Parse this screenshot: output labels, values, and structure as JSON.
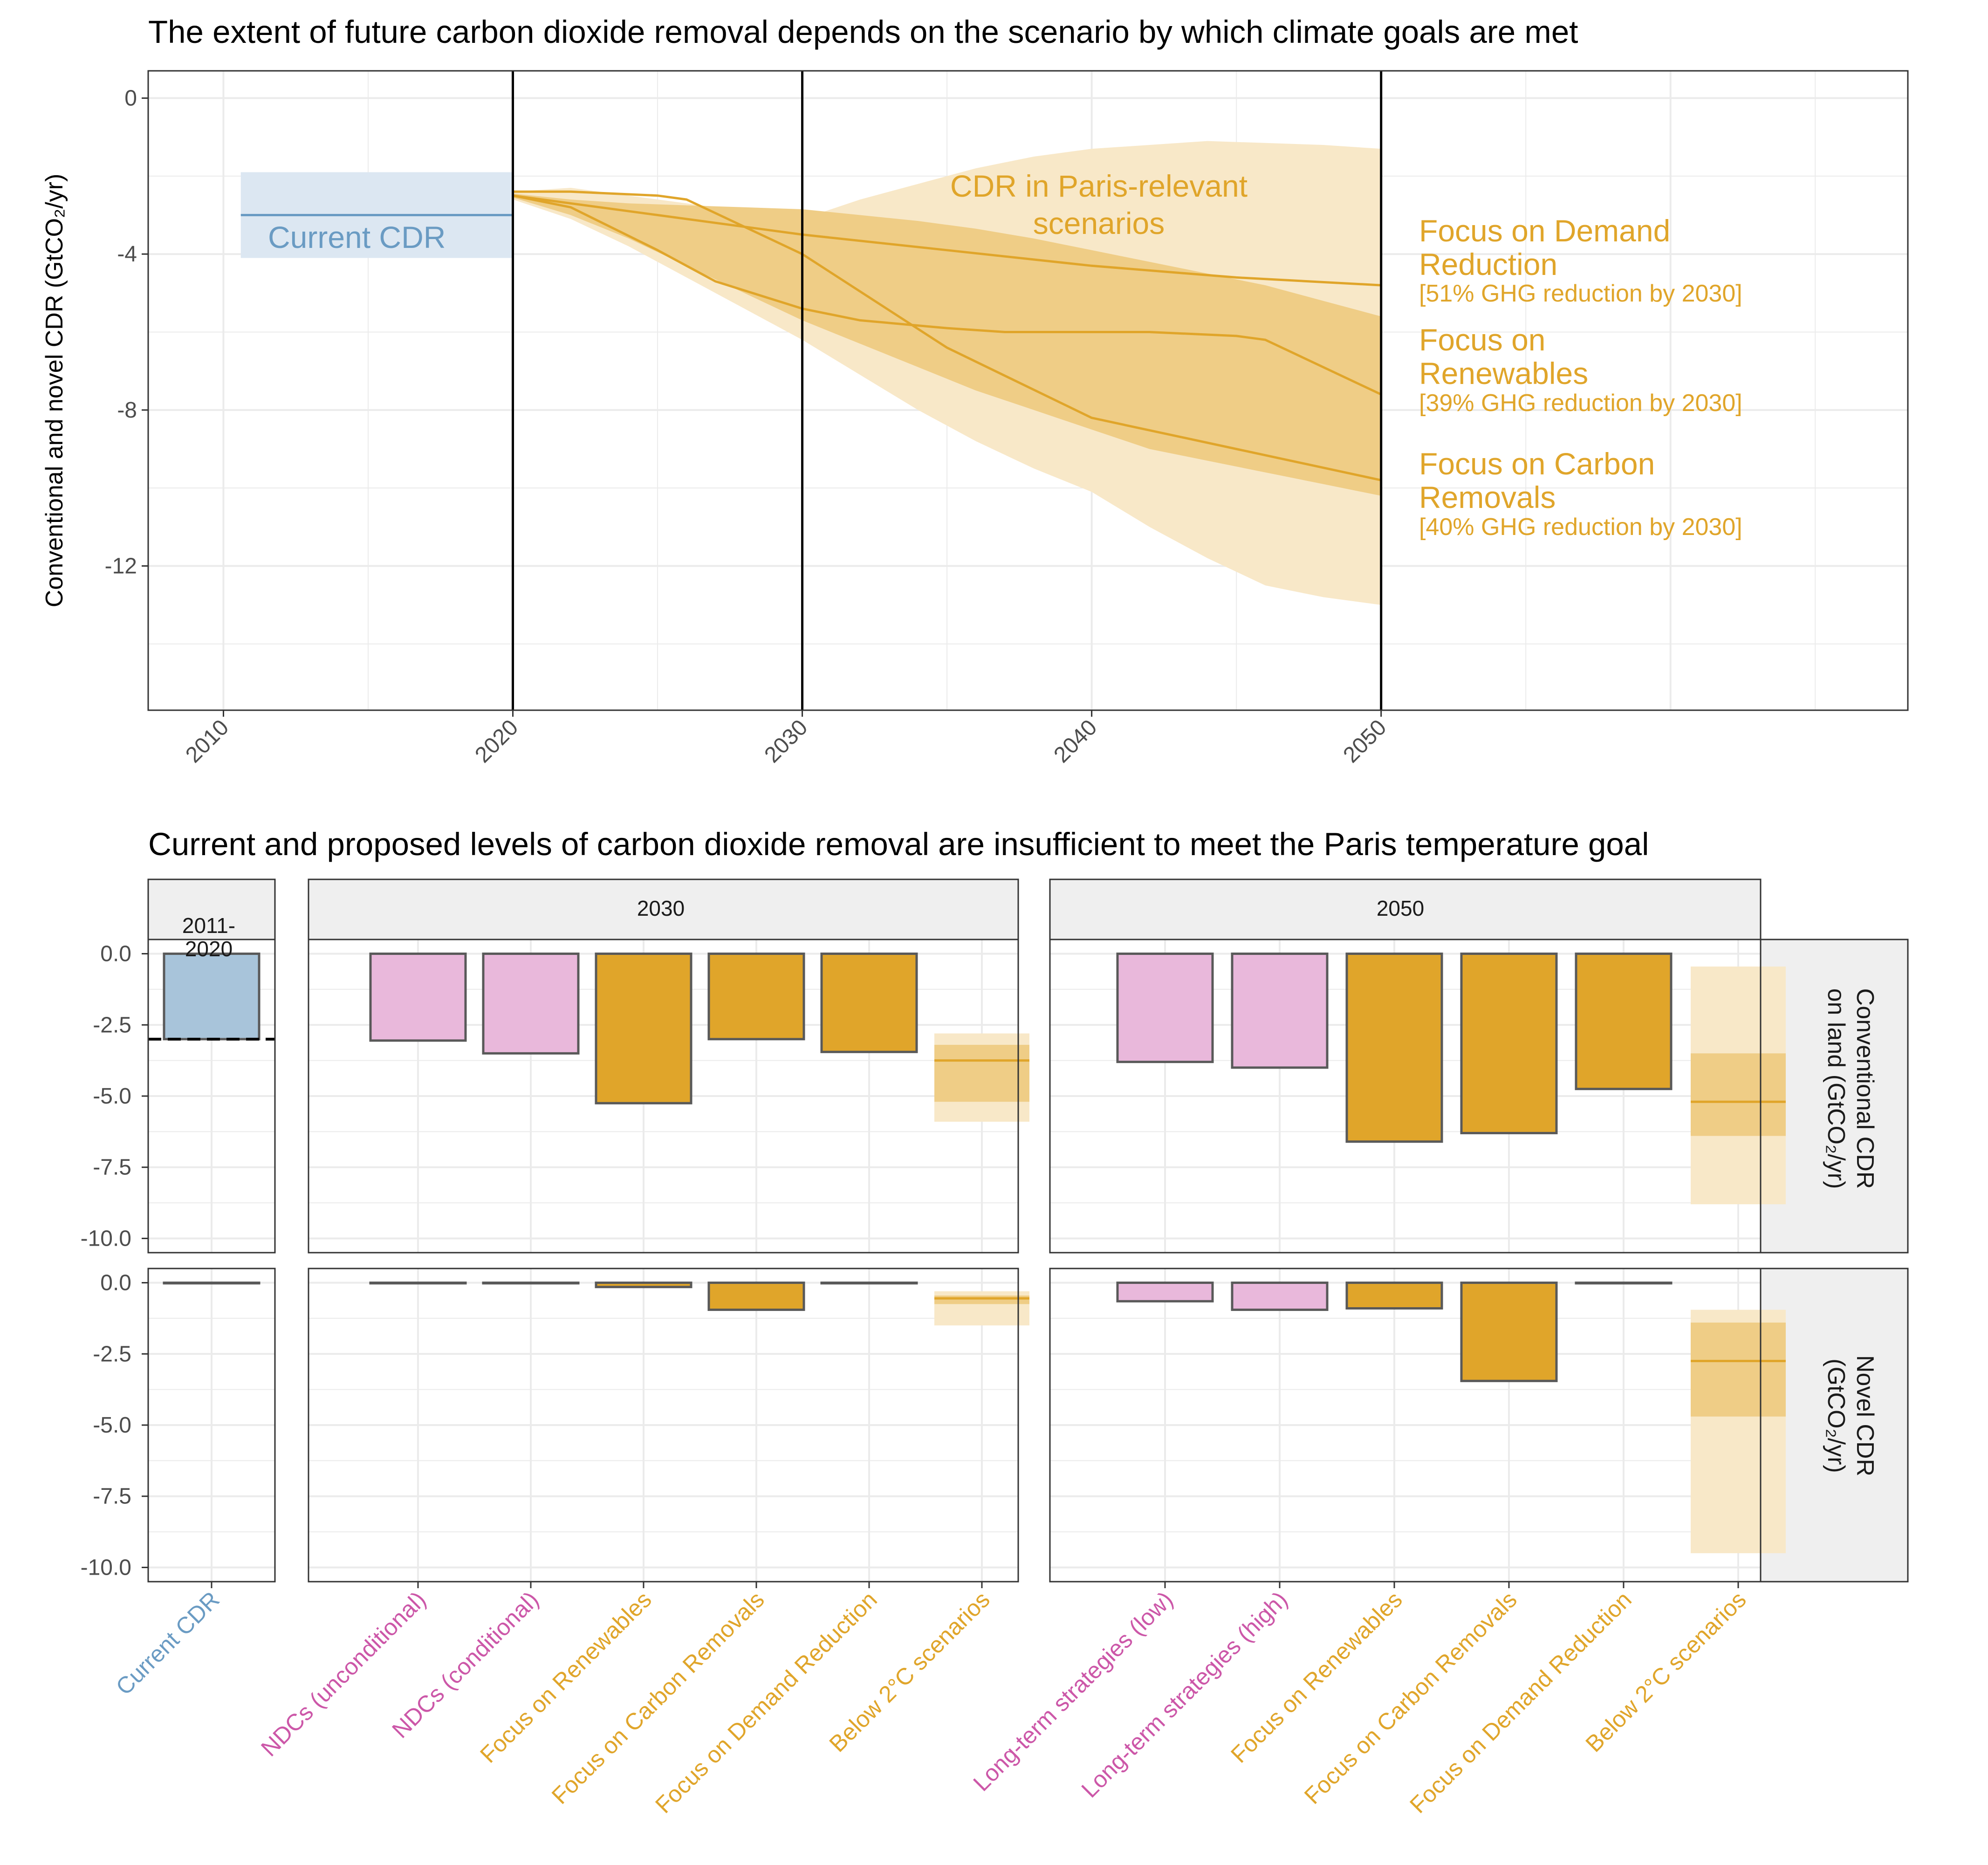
{
  "colors": {
    "current": "#6a9bc3",
    "current_fill": "#a8c4da",
    "current_band": "#dce7f2",
    "scenario": "#e0a52a",
    "scenario_band_light": "#f8e8c8",
    "scenario_band_dark": "#efcd86",
    "pledge": "#e9b8db",
    "pledge_text": "#cc57a8",
    "bar_outline": "#595959",
    "grid": "#ebebeb",
    "strip_bg": "#efefef"
  },
  "top": {
    "title": "The extent of future carbon dioxide removal depends on the scenario by which climate goals are met",
    "ylabel": "Conventional and novel CDR (GtCO₂/yr)",
    "current_label": "Current CDR",
    "band_label_line1": "CDR in Paris-relevant",
    "band_label_line2": "scenarios",
    "scenario_labels": [
      {
        "line1": "Focus on Demand",
        "line2": "Reduction",
        "note": "[51% GHG reduction by 2030]"
      },
      {
        "line1": "Focus on",
        "line2": "Renewables",
        "note": "[39% GHG reduction by 2030]"
      },
      {
        "line1": "Focus on Carbon",
        "line2": "Removals",
        "note": "[40% GHG reduction by 2030]"
      }
    ]
  },
  "bottom": {
    "title": "Current and proposed levels of carbon dioxide removal are insufficient to meet the Paris temperature goal",
    "strips": {
      "p1": "2011-\n2020",
      "p2": "2030",
      "p3": "2050"
    },
    "row_labels": {
      "conv_line1": "Conventional CDR",
      "conv_line2": "on land (GtCO₂/yr)",
      "novel_line1": "Novel CDR",
      "novel_line2": "(GtCO₂/yr)"
    }
  },
  "chart_data": [
    {
      "type": "line",
      "title": "The extent of future carbon dioxide removal depends on the scenario by which climate goals are met",
      "xlabel": "",
      "ylabel": "Conventional and novel CDR (GtCO₂/yr)",
      "xlim": [
        2007.4,
        2068.2
      ],
      "ylim": [
        -15.7,
        0.7
      ],
      "xticks": [
        2010,
        2020,
        2030,
        2040,
        2050
      ],
      "yticks": [
        0,
        -4,
        -8,
        -12
      ],
      "ytick_labels": [
        "0",
        "-4",
        "-8",
        "-12"
      ],
      "grid": true,
      "vlines": [
        2020,
        2030,
        2050
      ],
      "current_cdr": {
        "x": [
          2010.6,
          2020
        ],
        "value": -3.0,
        "low": -4.1,
        "high": -1.9
      },
      "series": [
        {
          "name": "Focus on Demand Reduction",
          "x": [
            2020,
            2025,
            2030,
            2035,
            2040,
            2045,
            2050
          ],
          "y": [
            -2.5,
            -3.0,
            -3.5,
            -3.9,
            -4.3,
            -4.6,
            -4.8
          ]
        },
        {
          "name": "Focus on Renewables",
          "x": [
            2020,
            2022,
            2025,
            2027,
            2030,
            2032,
            2035,
            2037,
            2040,
            2042,
            2045,
            2046,
            2050
          ],
          "y": [
            -2.5,
            -2.8,
            -3.9,
            -4.7,
            -5.4,
            -5.7,
            -5.9,
            -6.0,
            -6.0,
            -6.0,
            -6.1,
            -6.2,
            -7.6
          ]
        },
        {
          "name": "Focus on Carbon Removals",
          "x": [
            2020,
            2022,
            2025,
            2026,
            2030,
            2035,
            2040,
            2045,
            2050
          ],
          "y": [
            -2.4,
            -2.4,
            -2.5,
            -2.6,
            -4.0,
            -6.4,
            -8.2,
            -9.0,
            -9.8
          ]
        }
      ],
      "band_outer": {
        "x": [
          2020,
          2022,
          2024,
          2026,
          2028,
          2030,
          2032,
          2034,
          2036,
          2038,
          2040,
          2042,
          2044,
          2046,
          2048,
          2050
        ],
        "upper": [
          -2.4,
          -2.3,
          -2.5,
          -2.7,
          -2.9,
          -3.1,
          -2.6,
          -2.2,
          -1.8,
          -1.5,
          -1.3,
          -1.2,
          -1.1,
          -1.15,
          -1.2,
          -1.3
        ],
        "lower": [
          -2.6,
          -3.1,
          -3.8,
          -4.6,
          -5.4,
          -6.2,
          -7.1,
          -8.0,
          -8.8,
          -9.5,
          -10.1,
          -11.0,
          -11.8,
          -12.5,
          -12.8,
          -13.0
        ]
      },
      "band_inner": {
        "x": [
          2020,
          2022,
          2024,
          2026,
          2028,
          2030,
          2032,
          2034,
          2036,
          2038,
          2040,
          2042,
          2044,
          2046,
          2048,
          2050
        ],
        "upper": [
          -2.45,
          -2.6,
          -2.7,
          -2.75,
          -2.8,
          -2.85,
          -3.0,
          -3.15,
          -3.35,
          -3.6,
          -3.9,
          -4.2,
          -4.5,
          -4.8,
          -5.2,
          -5.6
        ],
        "lower": [
          -2.55,
          -3.0,
          -3.6,
          -4.3,
          -5.0,
          -5.7,
          -6.3,
          -6.9,
          -7.5,
          -8.0,
          -8.5,
          -9.0,
          -9.3,
          -9.6,
          -9.9,
          -10.2
        ]
      }
    },
    {
      "type": "bar",
      "title": "Current and proposed levels of carbon dioxide removal are insufficient to meet the Paris temperature goal",
      "ylim": [
        -10.5,
        0.5
      ],
      "yticks": [
        0,
        -2.5,
        -5,
        -7.5,
        -10
      ],
      "ytick_labels": [
        "0.0",
        "-2.5",
        "-5.0",
        "-7.5",
        "-10.0"
      ],
      "panels": [
        {
          "strip": "2011-2020",
          "categories": [
            "Current CDR"
          ],
          "groups": [
            "current"
          ],
          "conventional": [
            -3.0
          ],
          "novel": [
            -0.02
          ]
        },
        {
          "strip": "2030",
          "categories": [
            "NDCs (unconditional)",
            "NDCs (conditional)",
            "Focus on Renewables",
            "Focus on Carbon Removals",
            "Focus on Demand Reduction",
            "Below 2°C scenarios"
          ],
          "groups": [
            "pledge",
            "pledge",
            "scenario",
            "scenario",
            "scenario",
            "range"
          ],
          "conventional": [
            -3.05,
            -3.5,
            -5.25,
            -3.0,
            -3.45,
            null
          ],
          "novel": [
            -0.02,
            -0.02,
            -0.15,
            -0.95,
            -0.02,
            null
          ],
          "range_conventional": {
            "median": -3.75,
            "q_low": -5.2,
            "q_high": -3.2,
            "low": -5.9,
            "high": -2.8
          },
          "range_novel": {
            "median": -0.55,
            "q_low": -0.75,
            "q_high": -0.45,
            "low": -1.5,
            "high": -0.3
          }
        },
        {
          "strip": "2050",
          "categories": [
            "Long-term strategies (low)",
            "Long-term strategies (high)",
            "Focus on Renewables",
            "Focus on Carbon Removals",
            "Focus on Demand Reduction",
            "Below 2°C scenarios"
          ],
          "groups": [
            "pledge",
            "pledge",
            "scenario",
            "scenario",
            "scenario",
            "range"
          ],
          "conventional": [
            -3.8,
            -4.0,
            -6.6,
            -6.3,
            -4.75,
            null
          ],
          "novel": [
            -0.65,
            -0.95,
            -0.9,
            -3.45,
            -0.02,
            null
          ],
          "range_conventional": {
            "median": -5.2,
            "q_low": -6.4,
            "q_high": -3.5,
            "low": -8.8,
            "high": -0.45
          },
          "range_novel": {
            "median": -2.75,
            "q_low": -4.7,
            "q_high": -1.4,
            "low": -9.5,
            "high": -0.95
          }
        }
      ]
    }
  ]
}
